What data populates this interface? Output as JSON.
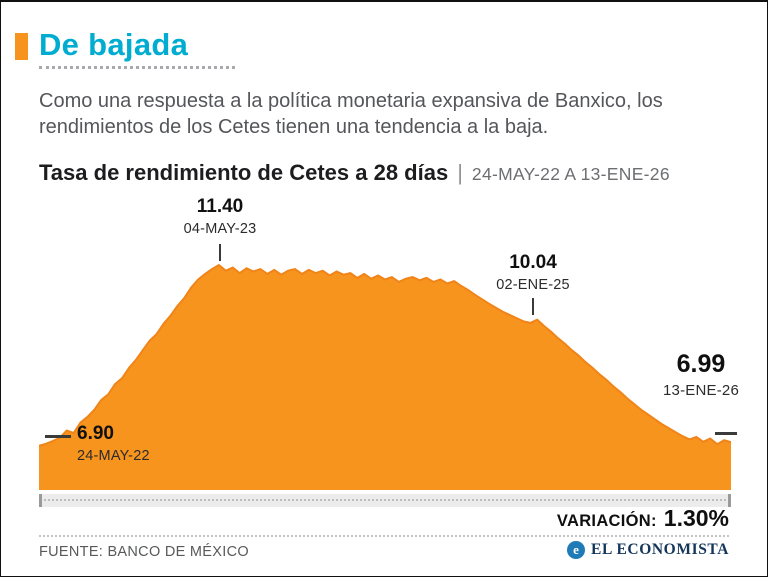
{
  "page": {
    "title": "De bajada",
    "intro": "Como una respuesta a la política monetaria expansiva de Banxico, los rendimientos de los Cetes tienen una tendencia a la baja.",
    "chart_heading": "Tasa de rendimiento de Cetes a 28 días",
    "heading_separator": "|",
    "date_range": "24-MAY-22 A 13-ENE-26"
  },
  "chart_data": {
    "type": "area",
    "title": "Tasa de rendimiento de Cetes a 28 días",
    "x_range": [
      "24-MAY-22",
      "13-ENE-26"
    ],
    "ylim": [
      5.8,
      11.7
    ],
    "fill_color": "#F7941E",
    "line_color": "#F08418",
    "grid": false,
    "legend": false,
    "values": [
      6.9,
      6.95,
      7.02,
      7.1,
      7.28,
      7.22,
      7.48,
      7.62,
      7.8,
      8.04,
      8.18,
      8.44,
      8.58,
      8.84,
      9.04,
      9.28,
      9.52,
      9.68,
      9.94,
      10.14,
      10.38,
      10.58,
      10.84,
      11.04,
      11.18,
      11.3,
      11.4,
      11.26,
      11.34,
      11.2,
      11.32,
      11.24,
      11.3,
      11.18,
      11.28,
      11.16,
      11.26,
      11.3,
      11.18,
      11.28,
      11.2,
      11.26,
      11.14,
      11.24,
      11.16,
      11.2,
      11.08,
      11.18,
      11.06,
      11.14,
      11.04,
      11.1,
      10.98,
      11.06,
      11.1,
      11.02,
      11.08,
      10.98,
      11.04,
      10.94,
      11.0,
      10.88,
      10.78,
      10.66,
      10.55,
      10.44,
      10.34,
      10.24,
      10.16,
      10.08,
      10.0,
      9.96,
      10.04,
      9.88,
      9.74,
      9.58,
      9.44,
      9.28,
      9.14,
      8.98,
      8.84,
      8.68,
      8.54,
      8.38,
      8.24,
      8.08,
      7.94,
      7.8,
      7.68,
      7.56,
      7.44,
      7.34,
      7.24,
      7.14,
      7.06,
      7.12,
      7.0,
      7.08,
      6.94,
      7.04,
      6.99
    ],
    "annotations": {
      "start": {
        "value": "6.90",
        "date": "24-MAY-22"
      },
      "peak": {
        "value": "11.40",
        "date": "04-MAY-23"
      },
      "mid": {
        "value": "10.04",
        "date": "02-ENE-25"
      },
      "end": {
        "value": "6.99",
        "date": "13-ENE-26"
      }
    }
  },
  "footer": {
    "variation_label": "VARIACIÓN:",
    "variation_value": "1.30%",
    "source": "FUENTE: BANCO DE MÉXICO",
    "brand": "EL ECONOMISTA",
    "brand_icon_glyph": "e"
  },
  "colors": {
    "accent_orange": "#F7941E",
    "title_cyan": "#00ADD0",
    "text_gray": "#55565a",
    "brand_navy": "#14355a"
  }
}
